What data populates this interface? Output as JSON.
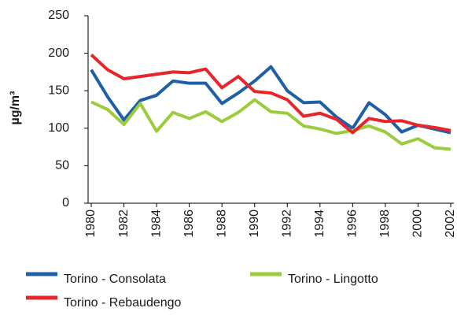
{
  "chart_data": {
    "type": "line",
    "y_label": "µg/m³",
    "x": [
      1980,
      1981,
      1982,
      1983,
      1984,
      1985,
      1986,
      1987,
      1988,
      1989,
      1990,
      1991,
      1992,
      1993,
      1994,
      1995,
      1996,
      1997,
      1998,
      1999,
      2000,
      2001,
      2002
    ],
    "xlim": [
      1980,
      2002
    ],
    "xticks": [
      1980,
      1982,
      1984,
      1986,
      1988,
      1990,
      1992,
      1994,
      1996,
      1998,
      2000,
      2002
    ],
    "ylim": [
      0,
      250
    ],
    "yticks": [
      0,
      50,
      100,
      150,
      200,
      250
    ],
    "grid": false,
    "legend": "bottom",
    "series": [
      {
        "name": "Torino - Consolata",
        "color": "#1f5fa8",
        "values": [
          178,
          142,
          111,
          137,
          144,
          163,
          160,
          160,
          133,
          147,
          163,
          182,
          150,
          134,
          135,
          115,
          100,
          134,
          118,
          95,
          104,
          99,
          94
        ]
      },
      {
        "name": "Torino - Lingotto",
        "color": "#9ccc3c",
        "values": [
          135,
          125,
          105,
          133,
          96,
          121,
          113,
          122,
          109,
          121,
          138,
          122,
          120,
          103,
          99,
          93,
          97,
          103,
          95,
          79,
          86,
          74,
          72
        ]
      },
      {
        "name": "Torino - Rebaudengo",
        "color": "#e8252a",
        "values": [
          198,
          178,
          166,
          169,
          172,
          175,
          174,
          179,
          154,
          169,
          149,
          147,
          138,
          116,
          120,
          112,
          94,
          113,
          109,
          110,
          104,
          101,
          97
        ]
      }
    ]
  }
}
